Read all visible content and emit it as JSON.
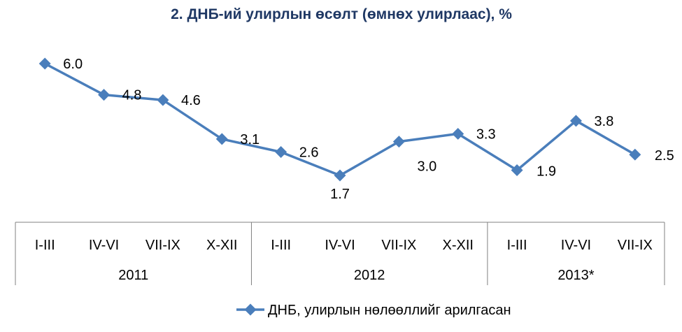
{
  "chart_data": {
    "type": "line",
    "title": "2. ДНБ-ий улирлын өсөлт (өмнөх улирлаас), %",
    "categories": [
      "I-III",
      "IV-VI",
      "VII-IX",
      "X-XII",
      "I-III",
      "IV-VI",
      "VII-IX",
      "X-XII",
      "I-III",
      "IV-VI",
      "VII-IX"
    ],
    "groups": [
      {
        "label": "2011",
        "count": 4
      },
      {
        "label": "2012",
        "count": 4
      },
      {
        "label": "2013*",
        "count": 3
      }
    ],
    "series": [
      {
        "name": "ДНБ, улирлын нөлөөллийг арилгасан",
        "color": "#4a7ebb",
        "values": [
          6.0,
          4.8,
          4.6,
          3.1,
          2.6,
          1.7,
          3.0,
          3.3,
          1.9,
          3.8,
          2.5
        ],
        "value_labels": [
          "6.0",
          "4.8",
          "4.6",
          "3.1",
          "2.6",
          "1.7",
          "3.0",
          "3.3",
          "1.9",
          "3.8",
          "2.5"
        ]
      }
    ],
    "grid": false,
    "legend_position": "bottom"
  }
}
